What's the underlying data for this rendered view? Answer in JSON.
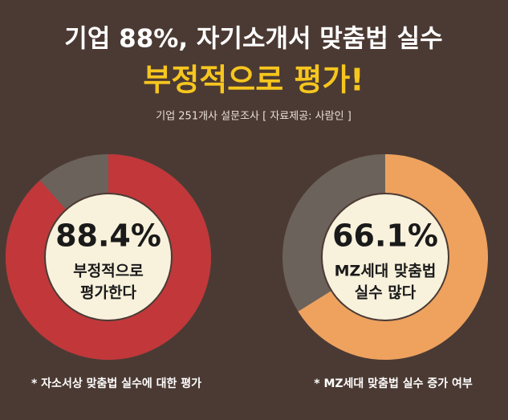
{
  "header": {
    "title": "기업 88%, 자기소개서 맞춤법 실수",
    "highlight": "부정적으로 평가!",
    "subtitle": "기업 251개사 설문조사 [ 자료제공: 사람인 ]"
  },
  "chart_data": [
    {
      "type": "donut",
      "values": [
        88.4
      ],
      "value_labels": [
        "88.4%"
      ],
      "color": "#c1373a",
      "track_color": "#6b625b",
      "label": [
        "부정적으로",
        "평가한다"
      ],
      "note": "* 자소서상 맞춤법 실수에 대한 평가"
    },
    {
      "type": "donut",
      "values": [
        66.1
      ],
      "value_labels": [
        "66.1%"
      ],
      "color": "#eea25e",
      "track_color": "#6b625b",
      "label": [
        "MZ세대 맞춤법",
        "실수 많다"
      ],
      "note": "* MZ세대 맞춤법 실수 증가 여부"
    }
  ]
}
